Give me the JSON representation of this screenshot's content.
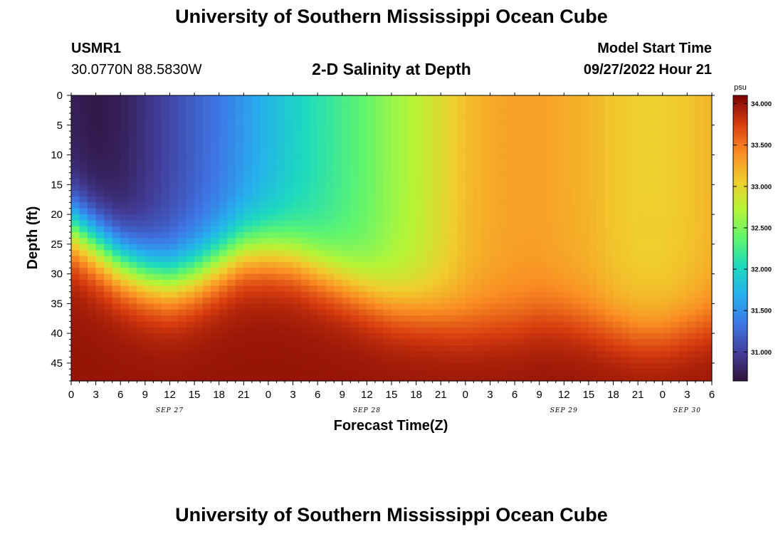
{
  "header": {
    "title": "University of Southern Mississippi Ocean Cube",
    "station_id": "USMR1",
    "coordinates": "30.0770N  88.5830W",
    "plot_title": "2-D Salinity at Depth",
    "model_label": "Model Start Time",
    "model_time": "09/27/2022 Hour 21"
  },
  "footer": {
    "title": "University of Southern Mississippi Ocean Cube"
  },
  "chart_data": {
    "type": "heatmap",
    "title": "2-D Salinity at Depth",
    "xlabel": "Forecast Time(Z)",
    "ylabel": "Depth (ft)",
    "x_range_hours": [
      0,
      78
    ],
    "x_ticks": [
      "0",
      "3",
      "6",
      "9",
      "12",
      "15",
      "18",
      "21",
      "0",
      "3",
      "6",
      "9",
      "12",
      "15",
      "18",
      "21",
      "0",
      "3",
      "6",
      "9",
      "12",
      "15",
      "18",
      "21",
      "0",
      "3",
      "6"
    ],
    "date_labels": [
      {
        "label": "SEP 27",
        "hour": 12
      },
      {
        "label": "SEP 28",
        "hour": 36
      },
      {
        "label": "SEP 29",
        "hour": 60
      },
      {
        "label": "SEP 30",
        "hour": 75
      }
    ],
    "ylim": [
      0,
      48
    ],
    "y_ticks": [
      0,
      5,
      10,
      15,
      20,
      25,
      30,
      35,
      40,
      45
    ],
    "colorbar": {
      "unit": "psu",
      "range": [
        30.65,
        34.1
      ],
      "ticks": [
        "31.000",
        "31.500",
        "32.000",
        "32.500",
        "33.000",
        "33.500",
        "34.000"
      ]
    },
    "surface_salinity": [
      {
        "hour": 0,
        "psu": 30.75
      },
      {
        "hour": 3,
        "psu": 30.7
      },
      {
        "hour": 6,
        "psu": 30.75
      },
      {
        "hour": 9,
        "psu": 30.9
      },
      {
        "hour": 12,
        "psu": 31.05
      },
      {
        "hour": 15,
        "psu": 31.2
      },
      {
        "hour": 18,
        "psu": 31.35
      },
      {
        "hour": 21,
        "psu": 31.55
      },
      {
        "hour": 24,
        "psu": 31.75
      },
      {
        "hour": 27,
        "psu": 31.95
      },
      {
        "hour": 30,
        "psu": 32.1
      },
      {
        "hour": 33,
        "psu": 32.25
      },
      {
        "hour": 36,
        "psu": 32.4
      },
      {
        "hour": 39,
        "psu": 32.6
      },
      {
        "hour": 42,
        "psu": 32.75
      },
      {
        "hour": 45,
        "psu": 32.95
      },
      {
        "hour": 48,
        "psu": 33.15
      },
      {
        "hour": 51,
        "psu": 33.25
      },
      {
        "hour": 54,
        "psu": 33.3
      },
      {
        "hour": 57,
        "psu": 33.3
      },
      {
        "hour": 60,
        "psu": 33.25
      },
      {
        "hour": 63,
        "psu": 33.2
      },
      {
        "hour": 66,
        "psu": 33.1
      },
      {
        "hour": 69,
        "psu": 33.05
      },
      {
        "hour": 72,
        "psu": 33.05
      },
      {
        "hour": 75,
        "psu": 33.1
      },
      {
        "hour": 78,
        "psu": 33.2
      }
    ],
    "halocline_depth_ft": [
      {
        "hour": 0,
        "depth": 22
      },
      {
        "hour": 3,
        "depth": 25
      },
      {
        "hour": 6,
        "depth": 28
      },
      {
        "hour": 9,
        "depth": 30
      },
      {
        "hour": 12,
        "depth": 31
      },
      {
        "hour": 15,
        "depth": 30
      },
      {
        "hour": 18,
        "depth": 28
      },
      {
        "hour": 21,
        "depth": 26
      },
      {
        "hour": 24,
        "depth": 26
      },
      {
        "hour": 27,
        "depth": 27
      },
      {
        "hour": 30,
        "depth": 29
      },
      {
        "hour": 33,
        "depth": 31
      },
      {
        "hour": 36,
        "depth": 33
      },
      {
        "hour": 39,
        "depth": 35
      },
      {
        "hour": 42,
        "depth": 36
      },
      {
        "hour": 45,
        "depth": 37
      },
      {
        "hour": 48,
        "depth": 38
      },
      {
        "hour": 51,
        "depth": 38
      },
      {
        "hour": 54,
        "depth": 38
      },
      {
        "hour": 57,
        "depth": 37
      },
      {
        "hour": 60,
        "depth": 37
      },
      {
        "hour": 63,
        "depth": 38
      },
      {
        "hour": 66,
        "depth": 39
      },
      {
        "hour": 69,
        "depth": 40
      },
      {
        "hour": 72,
        "depth": 40
      },
      {
        "hour": 75,
        "depth": 39
      },
      {
        "hour": 78,
        "depth": 38
      }
    ],
    "bottom_salinity_psu": 34.0
  }
}
